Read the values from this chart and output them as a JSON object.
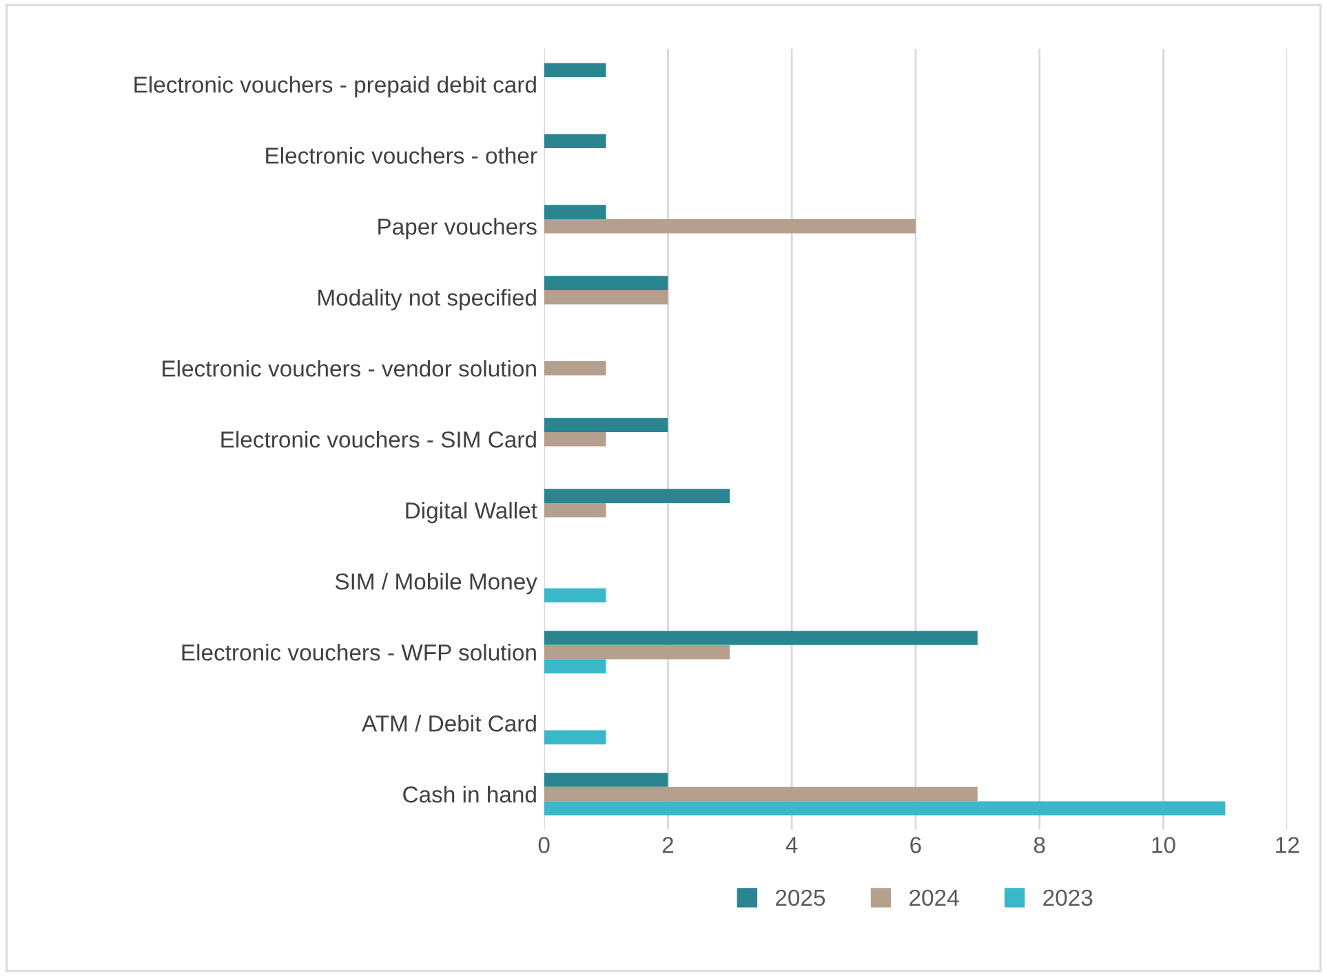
{
  "chart_data": {
    "type": "bar",
    "orientation": "horizontal",
    "categories": [
      "Electronic vouchers - prepaid debit card",
      "Electronic vouchers - other",
      "Paper vouchers",
      "Modality not specified",
      "Electronic vouchers - vendor solution",
      "Electronic vouchers - SIM Card",
      "Digital Wallet",
      "SIM / Mobile Money",
      "Electronic vouchers - WFP solution",
      "ATM / Debit Card",
      "Cash in hand"
    ],
    "series": [
      {
        "name": "2025",
        "color": "#2b8590",
        "values": [
          1,
          1,
          1,
          2,
          null,
          2,
          3,
          null,
          7,
          null,
          2
        ]
      },
      {
        "name": "2024",
        "color": "#b5a08d",
        "values": [
          null,
          null,
          6,
          2,
          1,
          1,
          1,
          null,
          3,
          null,
          7
        ]
      },
      {
        "name": "2023",
        "color": "#3ab7c8",
        "values": [
          null,
          null,
          null,
          null,
          null,
          null,
          null,
          1,
          1,
          1,
          11
        ]
      }
    ],
    "xlim": [
      0,
      12
    ],
    "xticks": [
      0,
      2,
      4,
      6,
      8,
      10,
      12
    ],
    "grid": "x",
    "legend": "bottom"
  }
}
